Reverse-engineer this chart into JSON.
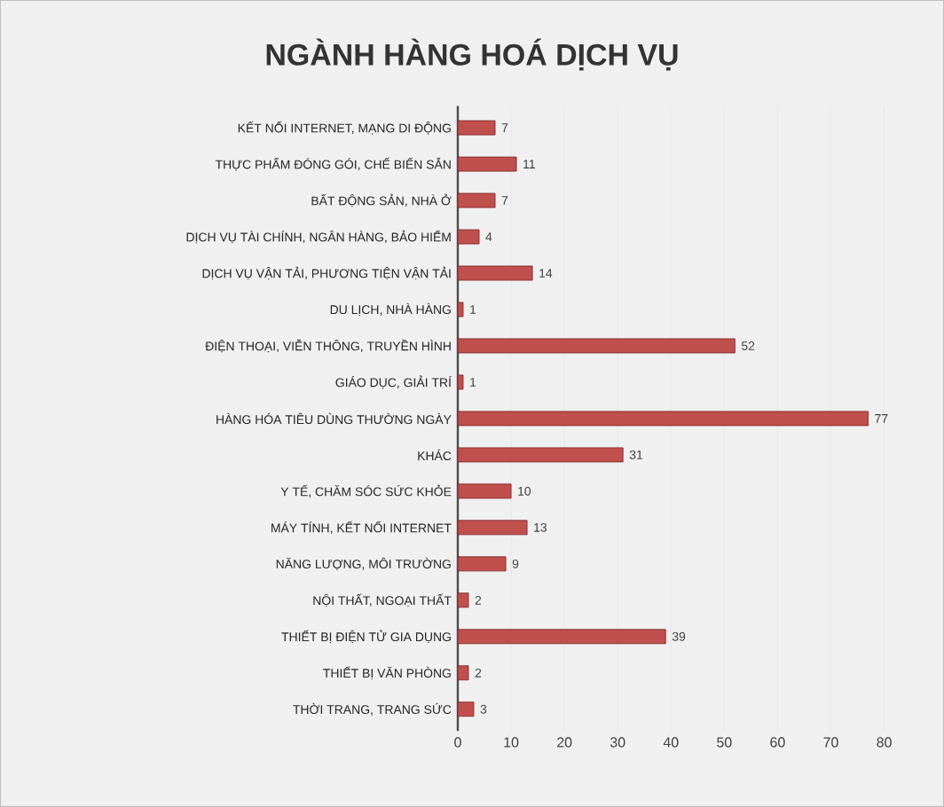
{
  "chart_data": {
    "type": "bar",
    "orientation": "horizontal",
    "title": "NGÀNH HÀNG HOÁ DỊCH VỤ",
    "categories": [
      "KẾT NỐI INTERNET, MẠNG DI ĐỘNG",
      "THỰC PHẨM ĐÓNG GÓI, CHẾ BIẾN SẴN",
      "BẤT ĐỘNG SẢN, NHÀ Ở",
      "DỊCH VỤ TÀI CHÍNH, NGÂN HÀNG, BẢO HIỂM",
      "DỊCH VỤ VẬN TẢI, PHƯƠNG TIỆN VẬN TẢI",
      "DU LỊCH, NHÀ HÀNG",
      "ĐIỆN THOẠI, VIỄN THÔNG, TRUYỀN HÌNH",
      "GIÁO DỤC, GIẢI TRÍ",
      "HÀNG HÓA TIÊU DÙNG THƯỜNG NGÀY",
      "KHÁC",
      "Y TẾ, CHĂM SÓC SỨC KHỎE",
      "MÁY TÍNH, KẾT NỐI INTERNET",
      "NĂNG LƯỢNG, MÔI TRƯỜNG",
      "NỘI THẤT, NGOẠI THẤT",
      "THIẾT BỊ ĐIỆN TỬ GIA DỤNG",
      "THIẾT BỊ VĂN PHÒNG",
      "THỜI TRANG, TRANG SỨC"
    ],
    "values": [
      7,
      11,
      7,
      4,
      14,
      1,
      52,
      1,
      77,
      31,
      10,
      13,
      9,
      2,
      39,
      2,
      3
    ],
    "color": "#c0504d",
    "xlim": [
      0,
      80
    ],
    "xticks": [
      0,
      10,
      20,
      30,
      40,
      50,
      60,
      70,
      80
    ],
    "grid": "x",
    "data_labels": true
  }
}
